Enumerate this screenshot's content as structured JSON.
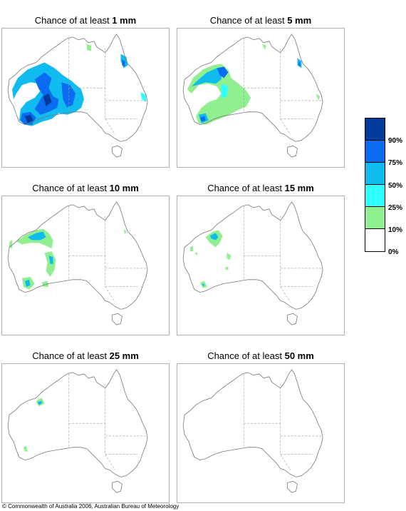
{
  "panels": [
    {
      "prefix": "Chance of at least",
      "amount": "1 mm"
    },
    {
      "prefix": "Chance of at least",
      "amount": "5 mm"
    },
    {
      "prefix": "Chance of at least",
      "amount": "10 mm"
    },
    {
      "prefix": "Chance of at least",
      "amount": "15 mm"
    },
    {
      "prefix": "Chance of at least",
      "amount": "25 mm"
    },
    {
      "prefix": "Chance of at least",
      "amount": "50 mm"
    }
  ],
  "legend": {
    "labels": [
      "90%",
      "75%",
      "50%",
      "25%",
      "10%",
      "0%"
    ],
    "bands": [
      {
        "range": "90-100%",
        "color": "#003c9c"
      },
      {
        "range": "75-90%",
        "color": "#0a6cf0"
      },
      {
        "range": "50-75%",
        "color": "#10bcef"
      },
      {
        "range": "25-50%",
        "color": "#30ffff"
      },
      {
        "range": "10-25%",
        "color": "#90f090"
      },
      {
        "range": "0-10%",
        "color": "#ffffff"
      }
    ]
  },
  "copyright": "© Commonwealth of Australia 2006, Australian Bureau of Meteorology"
}
